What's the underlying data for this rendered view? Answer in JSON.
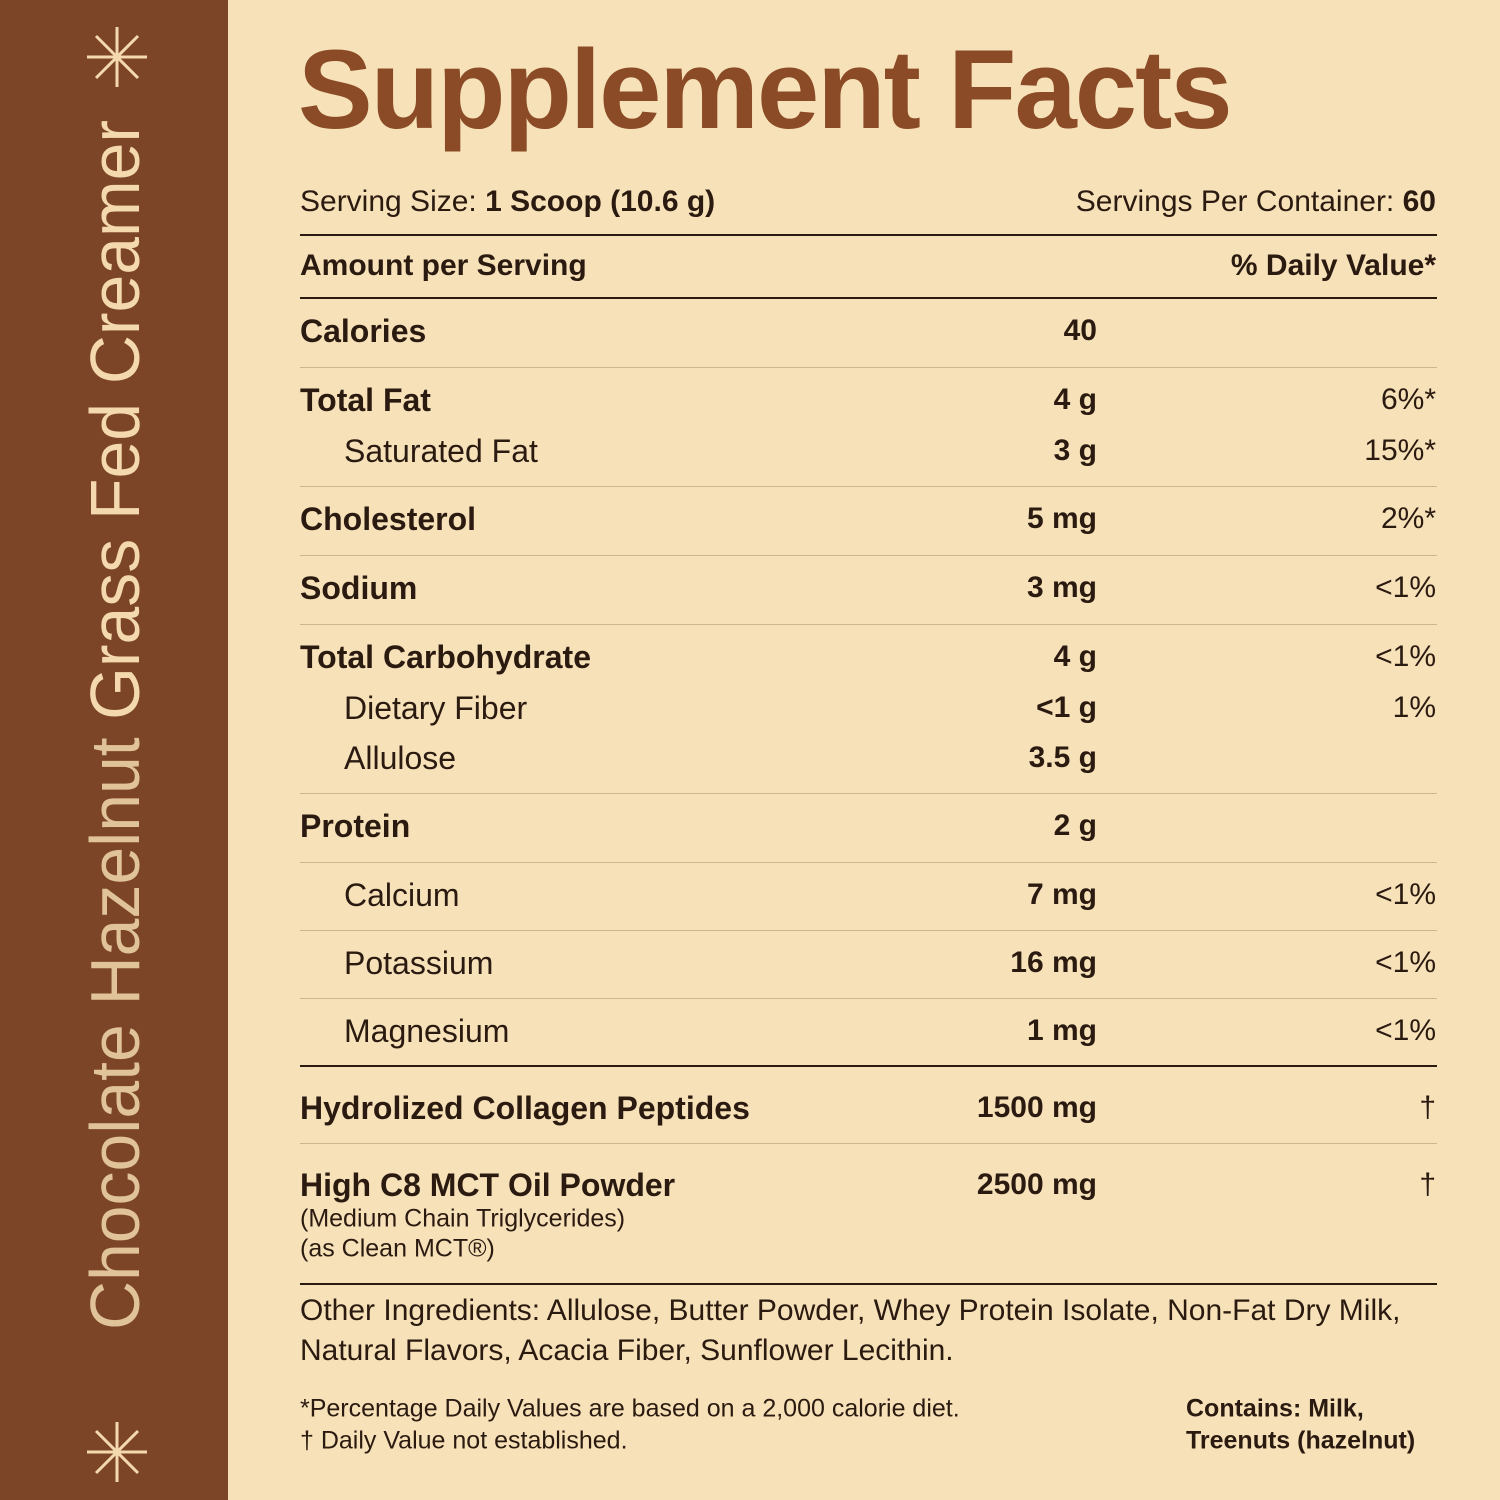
{
  "sidebar": {
    "product": "Chocolate Hazelnut",
    "variant": "Grass Fed Creamer"
  },
  "title": "Supplement Facts",
  "serving": {
    "size_label": "Serving Size:",
    "size": "1 Scoop (10.6 g)",
    "per_container_label": "Servings Per Container:",
    "per_container": "60"
  },
  "header": {
    "amount": "Amount per Serving",
    "daily_value": "% Daily Value*"
  },
  "nutrients": [
    {
      "main": {
        "name": "Calories",
        "amount": "40"
      }
    },
    {
      "main": {
        "name": "Total Fat",
        "amount": "4 g",
        "dv": "6%*"
      },
      "sub": [
        {
          "name": "Saturated Fat",
          "amount": "3 g",
          "dv": "15%*"
        }
      ]
    },
    {
      "main": {
        "name": "Cholesterol",
        "amount": "5 mg",
        "dv": "2%*"
      }
    },
    {
      "main": {
        "name": "Sodium",
        "amount": "3 mg",
        "dv": "<1%"
      }
    },
    {
      "main": {
        "name": "Total Carbohydrate",
        "amount": "4 g",
        "dv": "<1%"
      },
      "sub": [
        {
          "name": "Dietary Fiber",
          "amount": "<1 g",
          "dv": "1%"
        },
        {
          "name": "Allulose",
          "amount": "3.5 g"
        }
      ]
    },
    {
      "main": {
        "name": "Protein",
        "amount": "2 g"
      }
    },
    {
      "sub": [
        {
          "name": "Calcium",
          "amount": "7 mg",
          "dv": "<1%"
        }
      ]
    },
    {
      "sub": [
        {
          "name": "Potassium",
          "amount": "16 mg",
          "dv": "<1%"
        }
      ]
    },
    {
      "sub": [
        {
          "name": "Magnesium",
          "amount": "1 mg",
          "dv": "<1%"
        }
      ]
    }
  ],
  "other": [
    {
      "name": "Hydrolized Collagen Peptides",
      "amount": "1500 mg",
      "dv": "†"
    },
    {
      "name": "High C8 MCT Oil Powder",
      "amount": "2500 mg",
      "dv": "†",
      "notes": [
        "(Medium Chain Triglycerides)",
        "(as Clean MCT®)"
      ]
    }
  ],
  "ingredients": "Other Ingredients: Allulose, Butter Powder, Whey Protein Isolate, Non-Fat Dry Milk, Natural Flavors, Acacia Fiber, Sunflower Lecithin.",
  "footnotes": [
    "*Percentage Daily Values are based on a 2,000 calorie diet.",
    "† Daily Value not established."
  ],
  "contains": [
    "Contains: Milk,",
    "Treenuts (hazelnut)"
  ]
}
